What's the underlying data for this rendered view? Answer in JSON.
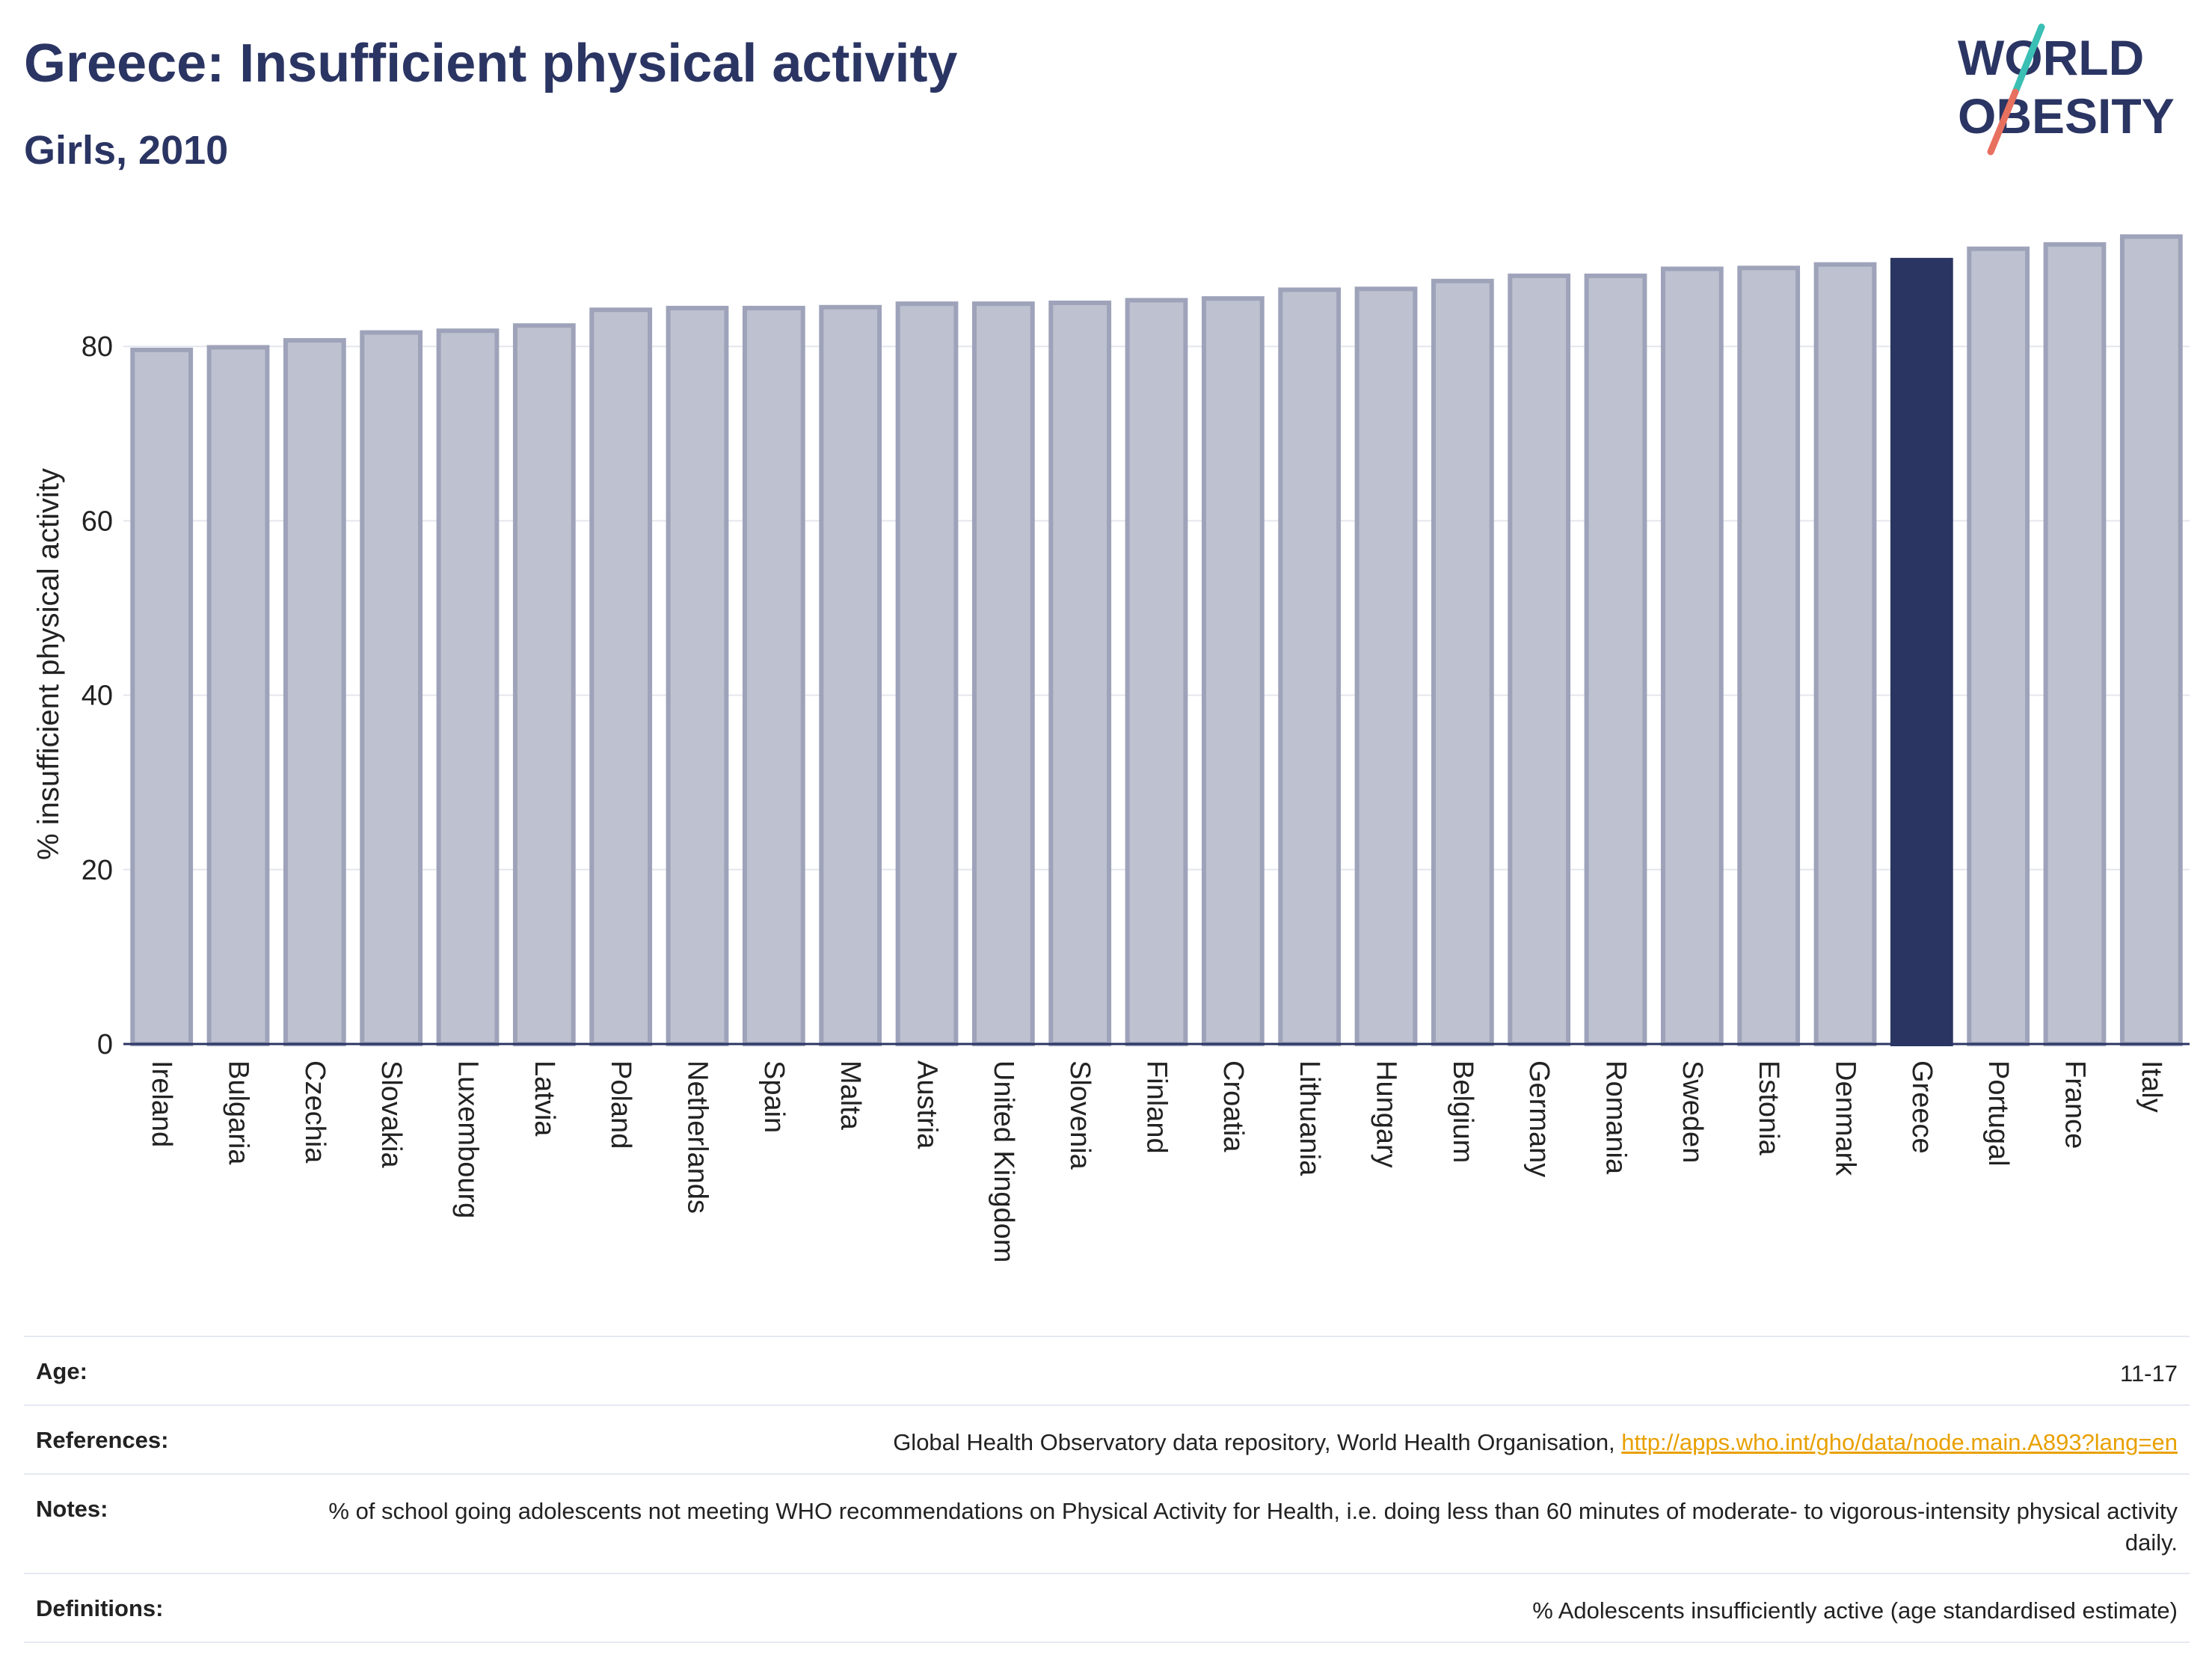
{
  "header": {
    "title": "Greece: Insufficient physical activity",
    "subtitle": "Girls, 2010",
    "logo_line1": "WORLD",
    "logo_line2": "OBESITY"
  },
  "colors": {
    "highlight": "#2a3561",
    "bar": "#bec1cf",
    "bar_outline": "#9ea3ba",
    "logo_teal": "#3bbfb4",
    "logo_red": "#e8705f",
    "link": "#e8a000"
  },
  "chart_data": {
    "type": "bar",
    "title": "Greece: Insufficient physical activity",
    "subtitle": "Girls, 2010",
    "ylabel": "% insufficient physical activity",
    "xlabel": "",
    "ylim": [
      0,
      94
    ],
    "yticks": [
      0,
      20,
      40,
      60,
      80
    ],
    "grid": true,
    "highlight": "Greece",
    "categories": [
      "Ireland",
      "Bulgaria",
      "Czechia",
      "Slovakia",
      "Luxembourg",
      "Latvia",
      "Poland",
      "Netherlands",
      "Spain",
      "Malta",
      "Austria",
      "United Kingdom",
      "Slovenia",
      "Finland",
      "Croatia",
      "Lithuania",
      "Hungary",
      "Belgium",
      "Germany",
      "Romania",
      "Sweden",
      "Estonia",
      "Denmark",
      "Greece",
      "Portugal",
      "France",
      "Italy"
    ],
    "values": [
      79.6,
      79.9,
      80.7,
      81.6,
      81.8,
      82.4,
      84.2,
      84.4,
      84.4,
      84.5,
      84.9,
      84.9,
      85.0,
      85.3,
      85.5,
      86.5,
      86.6,
      87.5,
      88.1,
      88.1,
      88.9,
      89.0,
      89.4,
      89.9,
      91.2,
      91.7,
      92.6
    ]
  },
  "meta": [
    {
      "key": "Age:",
      "value": "11-17"
    },
    {
      "key": "References:",
      "value": "Global Health Observatory data repository, World Health Organisation, ",
      "link": "http://apps.who.int/gho/data/node.main.A893?lang=en"
    },
    {
      "key": "Notes:",
      "value": "% of school going adolescents not meeting WHO recommendations on Physical Activity for Health, i.e. doing less than 60 minutes of moderate- to vigorous-intensity physical activity daily."
    },
    {
      "key": "Definitions:",
      "value": "% Adolescents insufficiently active (age standardised estimate)"
    }
  ]
}
